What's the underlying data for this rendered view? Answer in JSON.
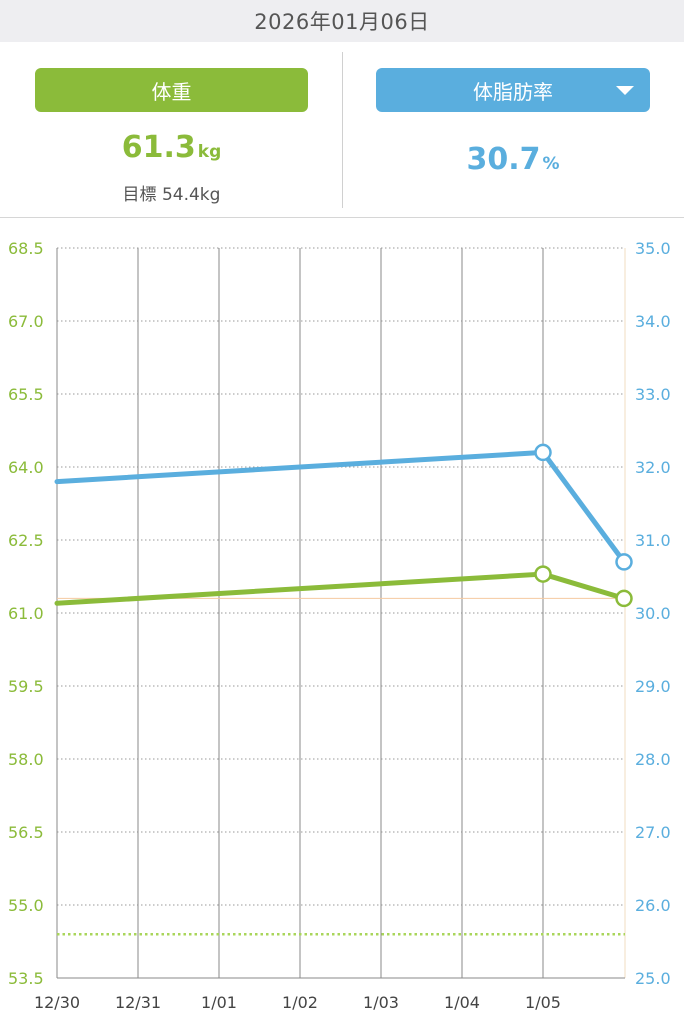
{
  "header": {
    "date": "2026年01月06日"
  },
  "summary": {
    "weight": {
      "button_label": "体重",
      "value": "61.3",
      "unit": "kg",
      "goal_label": "目標",
      "goal_value": "54.4kg"
    },
    "body_fat": {
      "button_label": "体脂肪率",
      "value": "30.7",
      "unit": "%"
    }
  },
  "colors": {
    "weight": "#8bbb3a",
    "body_fat": "#5aaede",
    "goal_line": "#a9d65a",
    "reference_line": "#f4c9a0",
    "grid": "#9a9a9a"
  },
  "icons": {
    "dropdown": "chevron-down-icon"
  },
  "chart_data": {
    "type": "line",
    "categories": [
      "12/30",
      "12/31",
      "1/01",
      "1/02",
      "1/03",
      "1/04",
      "1/05",
      ""
    ],
    "left_axis": {
      "ticks": [
        "68.5",
        "67.0",
        "65.5",
        "64.0",
        "62.5",
        "61.0",
        "59.5",
        "58.0",
        "56.5",
        "55.0",
        "53.5"
      ],
      "ylim": [
        53.5,
        68.5
      ]
    },
    "right_axis": {
      "ticks": [
        "35.0",
        "34.0",
        "33.0",
        "32.0",
        "31.0",
        "30.0",
        "29.0",
        "28.0",
        "27.0",
        "26.0",
        "25.0"
      ],
      "ylim": [
        25.0,
        35.0
      ]
    },
    "series": [
      {
        "axis": "left",
        "points": [
          {
            "x": 0,
            "y": 61.2,
            "marker": false
          },
          {
            "x": 6,
            "y": 61.8,
            "marker": true
          },
          {
            "x": 7,
            "y": 61.3,
            "marker": true
          }
        ]
      },
      {
        "axis": "right",
        "points": [
          {
            "x": 0,
            "y": 31.8,
            "marker": false
          },
          {
            "x": 6,
            "y": 32.2,
            "marker": true
          },
          {
            "x": 7,
            "y": 30.7,
            "marker": true
          }
        ]
      }
    ],
    "goal_line": {
      "axis": "left",
      "y": 54.4,
      "style": "dotted"
    },
    "reference_line": {
      "axis": "left",
      "y": 61.3
    },
    "grid": true
  }
}
